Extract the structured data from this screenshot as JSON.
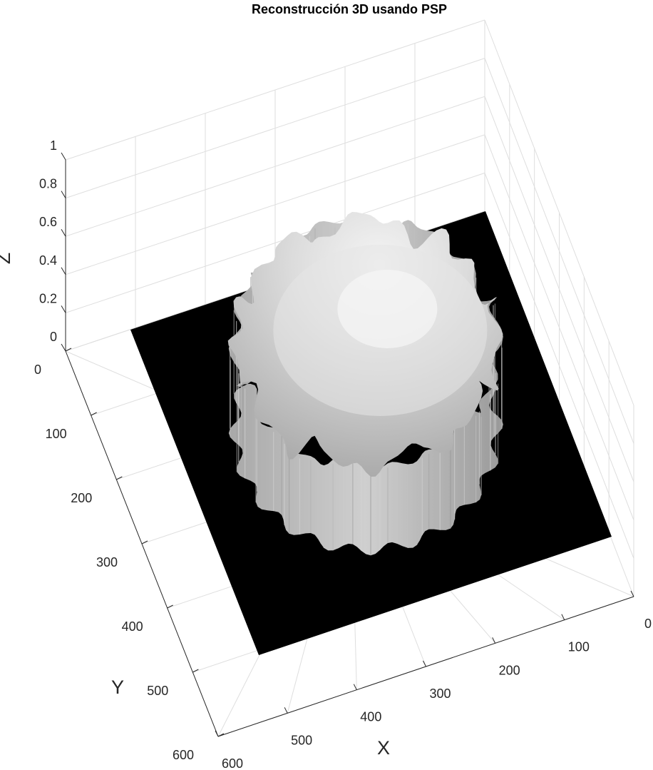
{
  "chart_data": {
    "type": "surface",
    "title": "Reconstrucción 3D usando PSP",
    "xlabel": "X",
    "ylabel": "Y",
    "zlabel": "Z",
    "xlim": [
      0,
      600
    ],
    "ylim": [
      0,
      600
    ],
    "zlim": [
      0,
      1
    ],
    "x_ticks": [
      "0",
      "100",
      "200",
      "300",
      "400",
      "500",
      "600"
    ],
    "y_ticks": [
      "0",
      "100",
      "200",
      "300",
      "400",
      "500",
      "600"
    ],
    "z_ticks": [
      "0",
      "0.2",
      "0.4",
      "0.6",
      "0.8",
      "1"
    ],
    "grid": true,
    "colormap": "gray",
    "colors": {
      "base": "#000000",
      "grid": "#dedede",
      "axis": "#262626",
      "surface_light": "#f2f2f2",
      "surface_dark": "#8a8a8a"
    },
    "object": {
      "shape": "dome",
      "center_x": 295,
      "center_y": 290,
      "radius": 210,
      "peak_z": 0.85,
      "edge_lobes": 20
    }
  }
}
